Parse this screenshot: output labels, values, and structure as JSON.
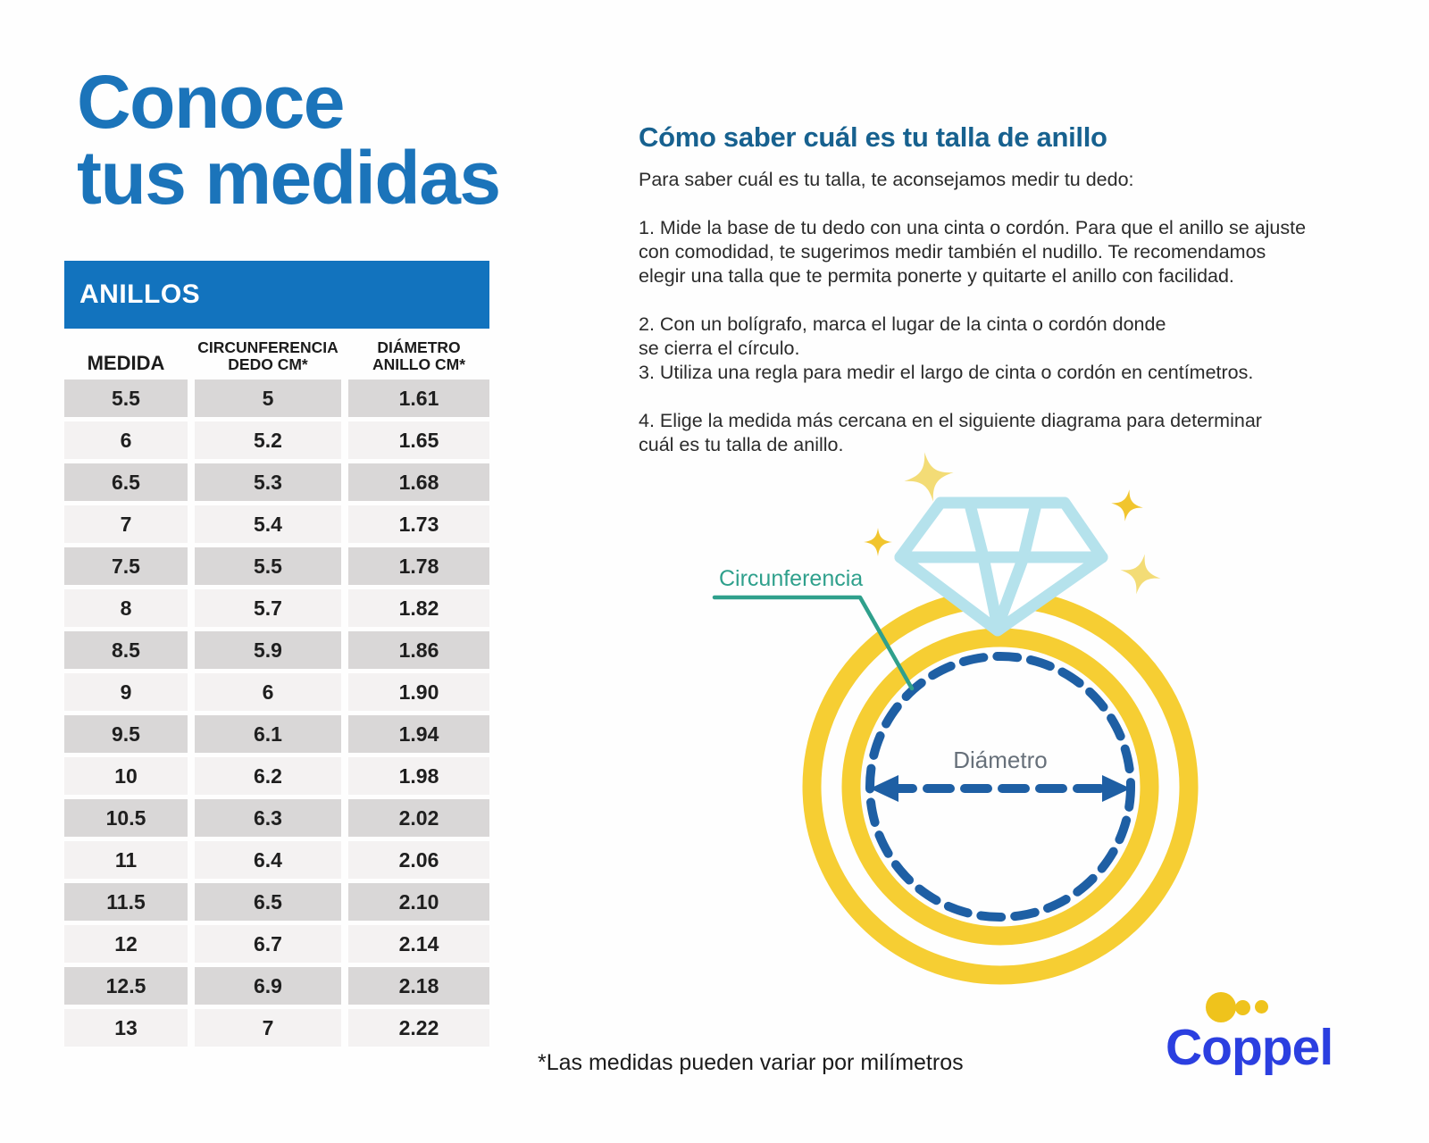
{
  "title": {
    "line1": "Conoce",
    "line2": "tus medidas"
  },
  "table": {
    "banner": "ANILLOS",
    "columns": [
      {
        "line1": "MEDIDA"
      },
      {
        "line1": "CIRCUNFERENCIA",
        "line2": "DEDO CM*"
      },
      {
        "line1": "DIÁMETRO",
        "line2": "ANILLO CM*"
      }
    ],
    "rows": [
      [
        "5.5",
        "5",
        "1.61"
      ],
      [
        "6",
        "5.2",
        "1.65"
      ],
      [
        "6.5",
        "5.3",
        "1.68"
      ],
      [
        "7",
        "5.4",
        "1.73"
      ],
      [
        "7.5",
        "5.5",
        "1.78"
      ],
      [
        "8",
        "5.7",
        "1.82"
      ],
      [
        "8.5",
        "5.9",
        "1.86"
      ],
      [
        "9",
        "6",
        "1.90"
      ],
      [
        "9.5",
        "6.1",
        "1.94"
      ],
      [
        "10",
        "6.2",
        "1.98"
      ],
      [
        "10.5",
        "6.3",
        "2.02"
      ],
      [
        "11",
        "6.4",
        "2.06"
      ],
      [
        "11.5",
        "6.5",
        "2.10"
      ],
      [
        "12",
        "6.7",
        "2.14"
      ],
      [
        "12.5",
        "6.9",
        "2.18"
      ],
      [
        "13",
        "7",
        "2.22"
      ]
    ]
  },
  "instructions": {
    "heading": "Cómo saber cuál es tu talla de anillo",
    "intro": "Para saber cuál es tu talla, te aconsejamos medir tu dedo:",
    "steps": [
      {
        "lines": [
          "1. Mide la base de tu dedo con una cinta o cordón. Para que el anillo se ajuste",
          "con comodidad, te sugerimos medir también el nudillo. Te recomendamos",
          "elegir una talla que te permita ponerte y quitarte el anillo con facilidad."
        ]
      },
      {
        "lines": [
          "2. Con un bolígrafo, marca el lugar de la cinta o cordón donde",
          "se cierra el círculo."
        ]
      },
      {
        "lines": [
          "3. Utiliza una regla para medir el largo de cinta o cordón en centímetros."
        ]
      },
      {
        "lines": [
          "4. Elige la medida más cercana en el siguiente diagrama para determinar",
          "cuál es tu talla de anillo."
        ]
      }
    ]
  },
  "diagram": {
    "circumference_label": "Circunferencia",
    "diameter_label": "Diámetro"
  },
  "footnote": "*Las medidas pueden variar por milímetros",
  "logo": {
    "text": "Coppel"
  },
  "colors": {
    "title_blue": "#1B74BA",
    "heading_blue": "#17618F",
    "banner_blue": "#1273BE",
    "banner_text": "#FFFFFF",
    "body_text": "#2B2B2B",
    "row_dark": "#D9D7D7",
    "row_light": "#F4F2F2",
    "cell_text": "#1F1F1F",
    "ring_yellow": "#F6CE33",
    "sparkle_bright": "#F1C52E",
    "sparkle_light": "#F3DC76",
    "diamond_blue": "#B5E2EC",
    "dash_navy": "#1E5FA4",
    "teal": "#2FA08C",
    "diameter_gray": "#67707A",
    "coppel_blue": "#2B3FE0",
    "coppel_yellow": "#EFC31C"
  }
}
